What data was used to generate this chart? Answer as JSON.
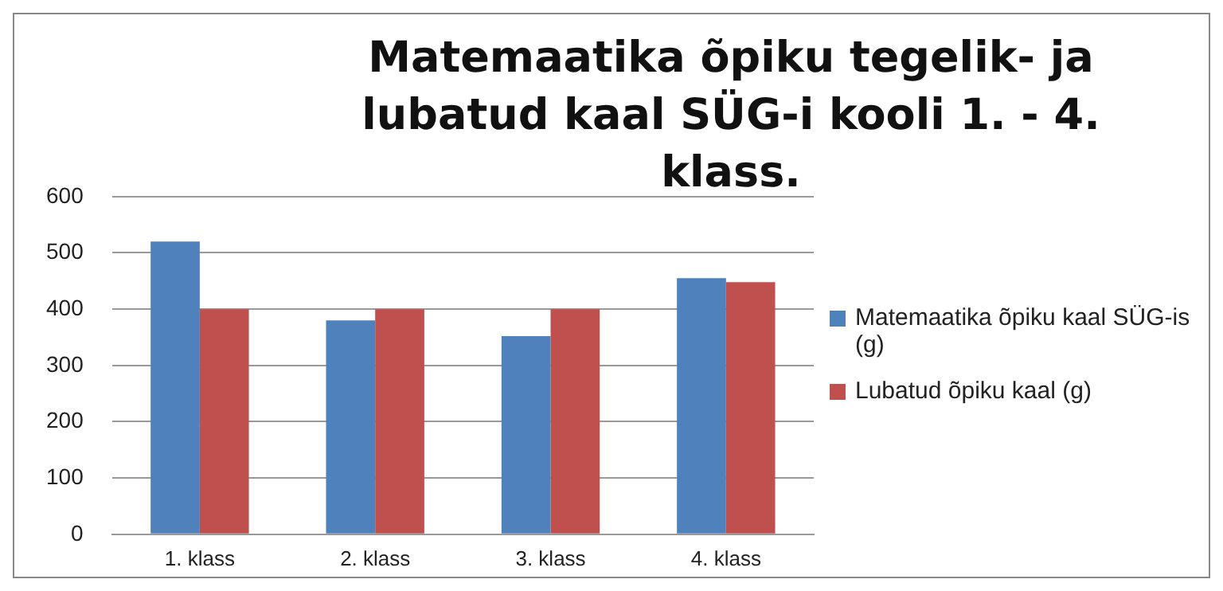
{
  "chart_data": {
    "type": "bar",
    "title": "Matemaatika õpiku tegelik- ja lubatud kaal SÜG-i kooli 1. - 4. klass.",
    "categories": [
      "1. klass",
      "2. klass",
      "3. klass",
      "4. klass"
    ],
    "series": [
      {
        "name": "Matemaatika õpiku kaal SÜG-is (g)",
        "color": "#4f81bd",
        "values": [
          520,
          380,
          352,
          455
        ]
      },
      {
        "name": "Lubatud õpiku kaal (g)",
        "color": "#c0504d",
        "values": [
          400,
          400,
          400,
          448
        ]
      }
    ],
    "ylim": [
      0,
      600
    ],
    "yticks": [
      0,
      100,
      200,
      300,
      400,
      500,
      600
    ],
    "grid": "y",
    "legend": "right"
  }
}
